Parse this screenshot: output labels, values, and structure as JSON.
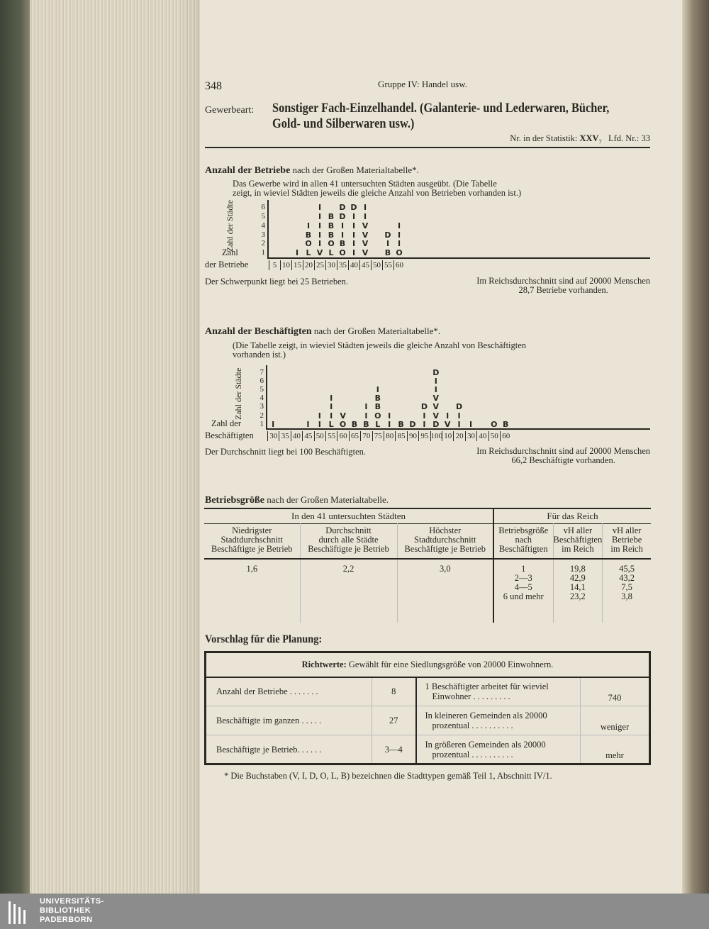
{
  "header": {
    "page_number": "348",
    "running_title": "Gruppe IV: Handel usw."
  },
  "title": {
    "label": "Gewerbeart:",
    "line1": "Sonstiger Fach-Einzelhandel. (Galanterie- und Lederwaren, Bücher,",
    "line2": "Gold- und Silberwaren usw.)",
    "stat_label": "Nr. in der Statistik:",
    "stat_value": "XXV",
    "stat_sub": "7",
    "lfd_label": "Lfd. Nr.:",
    "lfd_value": "33"
  },
  "section1": {
    "heading_bold": "Anzahl der Betriebe",
    "heading_rest": "nach der Großen Materialtabelle*.",
    "intro1": "Das Gewerbe wird in allen 41 untersuchten Städten ausgeübt. (Die Tabelle",
    "intro2": "zeigt, in wieviel Städten jeweils die gleiche Anzahl von Betrieben vorhanden ist.)",
    "note_left": "Der Schwerpunkt liegt bei 25 Betrieben.",
    "note_right1": "Im Reichsdurchschnitt sind auf 20000 Menschen",
    "note_right2": "28,7 Betriebe vorhanden."
  },
  "section2": {
    "heading_bold": "Anzahl der Beschäftigten",
    "heading_rest": "nach der Großen Materialtabelle*.",
    "intro1": "(Die Tabelle zeigt, in wieviel Städten jeweils die gleiche Anzahl von Beschäftigten",
    "intro2": "vorhanden ist.)",
    "note_left": "Der Durchschnitt liegt bei 100 Beschäftigten.",
    "note_right1": "Im Reichsdurchschnitt sind auf 20000 Menschen",
    "note_right2": "66,2 Beschäftigte vorhanden."
  },
  "chart_data": [
    {
      "type": "table",
      "ylabel": "Zahl der Städte",
      "xlabel_top": "Zahl",
      "xlabel": "der Betriebe",
      "y_ticks": [
        "1",
        "2",
        "3",
        "4",
        "5",
        "6"
      ],
      "x_ticks": [
        "5",
        "10",
        "15",
        "20",
        "25",
        "30",
        "35",
        "40",
        "45",
        "50",
        "55",
        "60"
      ],
      "columns": {
        "15": [
          "I"
        ],
        "20": [
          "L",
          "O",
          "B",
          "I"
        ],
        "25": [
          "V",
          "I",
          "I",
          "I",
          "I",
          "I"
        ],
        "30": [
          "L",
          "O",
          "B",
          "B",
          "B"
        ],
        "35": [
          "O",
          "B",
          "I",
          "I",
          "D",
          "D"
        ],
        "40": [
          "I",
          "I",
          "I",
          "I",
          "I",
          "D"
        ],
        "45": [
          "V",
          "V",
          "V",
          "V",
          "I",
          "I"
        ],
        "55": [
          "B",
          "I",
          "D"
        ],
        "60": [
          "O",
          "I",
          "I",
          "I"
        ]
      }
    },
    {
      "type": "table",
      "ylabel": "Zahl der Städte",
      "xlabel_top": "Zahl der",
      "xlabel": "Beschäftigten",
      "y_ticks": [
        "1",
        "2",
        "3",
        "4",
        "5",
        "6",
        "7"
      ],
      "x_ticks": [
        "30",
        "35",
        "40",
        "45",
        "50",
        "55",
        "60",
        "65",
        "70",
        "75",
        "80",
        "85",
        "90",
        "95",
        "100",
        "10",
        "20",
        "30",
        "40",
        "50",
        "60"
      ],
      "columns": {
        "0": [
          "I"
        ],
        "3": [
          "I"
        ],
        "4": [
          "I",
          "I"
        ],
        "5": [
          "L",
          "I",
          "I",
          "I"
        ],
        "6": [
          "O",
          "V"
        ],
        "7": [
          "B"
        ],
        "8": [
          "B",
          "I",
          "I"
        ],
        "9": [
          "L",
          "O",
          "B",
          "B",
          "I"
        ],
        "10": [
          "I",
          "I"
        ],
        "11": [
          "B"
        ],
        "12": [
          "D"
        ],
        "13": [
          "I",
          "I",
          "D"
        ],
        "14": [
          "D",
          "V",
          "V",
          "V",
          "I",
          "I",
          "D"
        ],
        "15": [
          "V",
          "I"
        ],
        "16": [
          "I",
          "I",
          "D"
        ],
        "17": [
          "I"
        ],
        "19": [
          "O"
        ],
        "20": [
          "B"
        ]
      }
    }
  ],
  "betriebsgroesse": {
    "heading_bold": "Betriebsgröße",
    "heading_rest": "nach der Großen Materialtabelle.",
    "group_left": "In den 41 untersuchten Städten",
    "group_right": "Für das Reich",
    "col1": [
      "Niedrigster",
      "Stadtdurchschnitt",
      "Beschäftigte je Betrieb"
    ],
    "col2": [
      "Durchschnitt",
      "durch alle Städte",
      "Beschäftigte je Betrieb"
    ],
    "col3": [
      "Höchster",
      "Stadtdurchschnitt",
      "Beschäftigte je Betrieb"
    ],
    "col4": [
      "Betriebsgröße",
      "nach",
      "Beschäftigten"
    ],
    "col5": [
      "vH aller",
      "Beschäftigten",
      "im Reich"
    ],
    "col6": [
      "vH aller",
      "Betriebe",
      "im Reich"
    ],
    "v1": "1,6",
    "v2": "2,2",
    "v3": "3,0",
    "rows": [
      [
        "1",
        "19,8",
        "45,5"
      ],
      [
        "2—3",
        "42,9",
        "43,2"
      ],
      [
        "4—5",
        "14,1",
        "7,5"
      ],
      [
        "6 und mehr",
        "23,2",
        "3,8"
      ]
    ]
  },
  "planung": {
    "heading": "Vorschlag für die Planung:",
    "richt_bold": "Richtwerte:",
    "richt_rest": "Gewählt für eine Siedlungsgröße von 20000 Einwohnern.",
    "rows": [
      {
        "label": "Anzahl der Betriebe",
        "value": "8",
        "q1": "1 Beschäftigter arbeitet für wieviel",
        "q2": "Einwohner",
        "a": "740"
      },
      {
        "label": "Beschäftigte im ganzen",
        "value": "27",
        "q1": "In kleineren Gemeinden als 20000",
        "q2": "prozentual",
        "a": "weniger"
      },
      {
        "label": "Beschäftigte je Betrieb",
        "value": "3—4",
        "q1": "In größeren Gemeinden als 20000",
        "q2": "prozentual",
        "a": "mehr"
      }
    ]
  },
  "footnote": "* Die Buchstaben (V, I, D, O, L, B) bezeichnen die Stadttypen gemäß Teil 1, Abschnitt IV/1.",
  "logo": {
    "line1": "UNIVERSITÄTS-",
    "line2": "BIBLIOTHEK",
    "line3": "PADERBORN"
  }
}
